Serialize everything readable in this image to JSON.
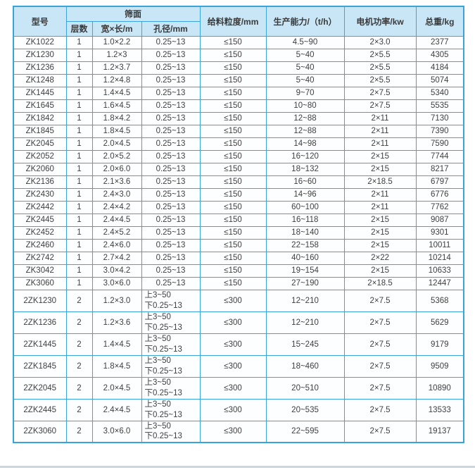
{
  "table": {
    "border_color": "#3ba6da",
    "header_bg": "#c9e6f6",
    "row_bg": "#fdfeff",
    "headers": {
      "model": "型号",
      "screen_group": "筛面",
      "layers": "层数",
      "width_length": "宽×长/m",
      "aperture": "孔径/mm",
      "feed_size": "给料粒度/mm",
      "capacity": "生产能力/（t/h）",
      "motor_power": "电机功率/kw",
      "weight": "总重/kg"
    },
    "rows": [
      {
        "model": "ZK1022",
        "layers": "1",
        "size": "1.0×2.2",
        "aperture": [
          "0.25~13"
        ],
        "feed": "≤150",
        "capacity": "4.5~90",
        "power": "2×3.0",
        "weight": "2377"
      },
      {
        "model": "ZK1230",
        "layers": "1",
        "size": "1.2×3",
        "aperture": [
          "0.25~13"
        ],
        "feed": "≤150",
        "capacity": "5~40",
        "power": "2×5.5",
        "weight": "4305"
      },
      {
        "model": "ZK1236",
        "layers": "1",
        "size": "1.2×3.7",
        "aperture": [
          "0.25~13"
        ],
        "feed": "≤150",
        "capacity": "5~40",
        "power": "2×5.5",
        "weight": "4184"
      },
      {
        "model": "ZK1248",
        "layers": "1",
        "size": "1.2×4.8",
        "aperture": [
          "0.25~13"
        ],
        "feed": "≤150",
        "capacity": "5~40",
        "power": "2×5.5",
        "weight": "5074"
      },
      {
        "model": "ZK1445",
        "layers": "1",
        "size": "1.4×4.5",
        "aperture": [
          "0.25~13"
        ],
        "feed": "≤150",
        "capacity": "9~70",
        "power": "2×7.5",
        "weight": "5340"
      },
      {
        "model": "ZK1645",
        "layers": "1",
        "size": "1.6×4.5",
        "aperture": [
          "0.25~13"
        ],
        "feed": "≤150",
        "capacity": "10~80",
        "power": "2×7.5",
        "weight": "5535"
      },
      {
        "model": "ZK1842",
        "layers": "1",
        "size": "1.8×4.2",
        "aperture": [
          "0.25~13"
        ],
        "feed": "≤150",
        "capacity": "12~88",
        "power": "2×11",
        "weight": "7130"
      },
      {
        "model": "ZK1845",
        "layers": "1",
        "size": "1.8×4.5",
        "aperture": [
          "0.25~13"
        ],
        "feed": "≤150",
        "capacity": "12~88",
        "power": "2×11",
        "weight": "7390"
      },
      {
        "model": "ZK2045",
        "layers": "1",
        "size": "2.0×4.5",
        "aperture": [
          "0.25~13"
        ],
        "feed": "≤150",
        "capacity": "14~98",
        "power": "2×11",
        "weight": "7590"
      },
      {
        "model": "ZK2052",
        "layers": "1",
        "size": "2.0×5.2",
        "aperture": [
          "0.25~13"
        ],
        "feed": "≤150",
        "capacity": "16~120",
        "power": "2×15",
        "weight": "7744"
      },
      {
        "model": "ZK2060",
        "layers": "1",
        "size": "2.0×6.0",
        "aperture": [
          "0.25~13"
        ],
        "feed": "≤150",
        "capacity": "18~132",
        "power": "2×15",
        "weight": "8217"
      },
      {
        "model": "ZK2136",
        "layers": "1",
        "size": "2.1×3.6",
        "aperture": [
          "0.25~13"
        ],
        "feed": "≤150",
        "capacity": "16~60",
        "power": "2×18.5",
        "weight": "6797"
      },
      {
        "model": "ZK2430",
        "layers": "1",
        "size": "2.4×3.0",
        "aperture": [
          "0.25~13"
        ],
        "feed": "≤150",
        "capacity": "14~96",
        "power": "2×11",
        "weight": "6776"
      },
      {
        "model": "ZK2442",
        "layers": "1",
        "size": "2.4×4.2",
        "aperture": [
          "0.25~13"
        ],
        "feed": "≤150",
        "capacity": "60~100",
        "power": "2×11",
        "weight": "7762"
      },
      {
        "model": "ZK2445",
        "layers": "1",
        "size": "2.4×4.5",
        "aperture": [
          "0.25~13"
        ],
        "feed": "≤150",
        "capacity": "16~118",
        "power": "2×15",
        "weight": "9087"
      },
      {
        "model": "ZK2452",
        "layers": "1",
        "size": "2.4×5.2",
        "aperture": [
          "0.25~13"
        ],
        "feed": "≤150",
        "capacity": "18~140",
        "power": "2×15",
        "weight": "9301"
      },
      {
        "model": "ZK2460",
        "layers": "1",
        "size": "2.4×6.0",
        "aperture": [
          "0.25~13"
        ],
        "feed": "≤150",
        "capacity": "22~158",
        "power": "2×15",
        "weight": "10011"
      },
      {
        "model": "ZK2742",
        "layers": "1",
        "size": "2.7×4.2",
        "aperture": [
          "0.25~13"
        ],
        "feed": "≤150",
        "capacity": "40~160",
        "power": "2×22",
        "weight": "10214"
      },
      {
        "model": "ZK3042",
        "layers": "1",
        "size": "3.0×4.2",
        "aperture": [
          "0.25~13"
        ],
        "feed": "≤150",
        "capacity": "19~154",
        "power": "2×15",
        "weight": "10633"
      },
      {
        "model": "ZK3060",
        "layers": "1",
        "size": "3.0×6.0",
        "aperture": [
          "0.25~13"
        ],
        "feed": "≤150",
        "capacity": "27~190",
        "power": "2×18.5",
        "weight": "12447"
      },
      {
        "model": "2ZK1230",
        "layers": "2",
        "size": "1.2×3.0",
        "aperture": [
          "上3~50",
          "下0.25~13"
        ],
        "feed": "≤300",
        "capacity": "12~210",
        "power": "2×7.5",
        "weight": "5368"
      },
      {
        "model": "2ZK1236",
        "layers": "2",
        "size": "1.2×3.6",
        "aperture": [
          "上3~50",
          "下0.25~13"
        ],
        "feed": "≤300",
        "capacity": "12~210",
        "power": "2×7.5",
        "weight": "5629"
      },
      {
        "model": "2ZK1445",
        "layers": "2",
        "size": "1.4×4.5",
        "aperture": [
          "上3~50",
          "下0.25~13"
        ],
        "feed": "≤300",
        "capacity": "15~245",
        "power": "2×7.5",
        "weight": "9179"
      },
      {
        "model": "2ZK1845",
        "layers": "2",
        "size": "1.8×4.5",
        "aperture": [
          "上3~50",
          "下0.25~13"
        ],
        "feed": "≤300",
        "capacity": "18~460",
        "power": "2×7.5",
        "weight": "9509"
      },
      {
        "model": "2ZK2045",
        "layers": "2",
        "size": "2.0×4.5",
        "aperture": [
          "上3~50",
          "下0.25~13"
        ],
        "feed": "≤300",
        "capacity": "20~510",
        "power": "2×7.5",
        "weight": "10890"
      },
      {
        "model": "2ZK2445",
        "layers": "2",
        "size": "2.4×4.5",
        "aperture": [
          "上3~50",
          "下0.25~13"
        ],
        "feed": "≤300",
        "capacity": "20~535",
        "power": "2×7.5",
        "weight": "13533"
      },
      {
        "model": "2ZK3060",
        "layers": "2",
        "size": "3.0×6.0",
        "aperture": [
          "上3~50",
          "下0.25~13"
        ],
        "feed": "≤300",
        "capacity": "22~595",
        "power": "2×7.5",
        "weight": "19137"
      }
    ]
  }
}
